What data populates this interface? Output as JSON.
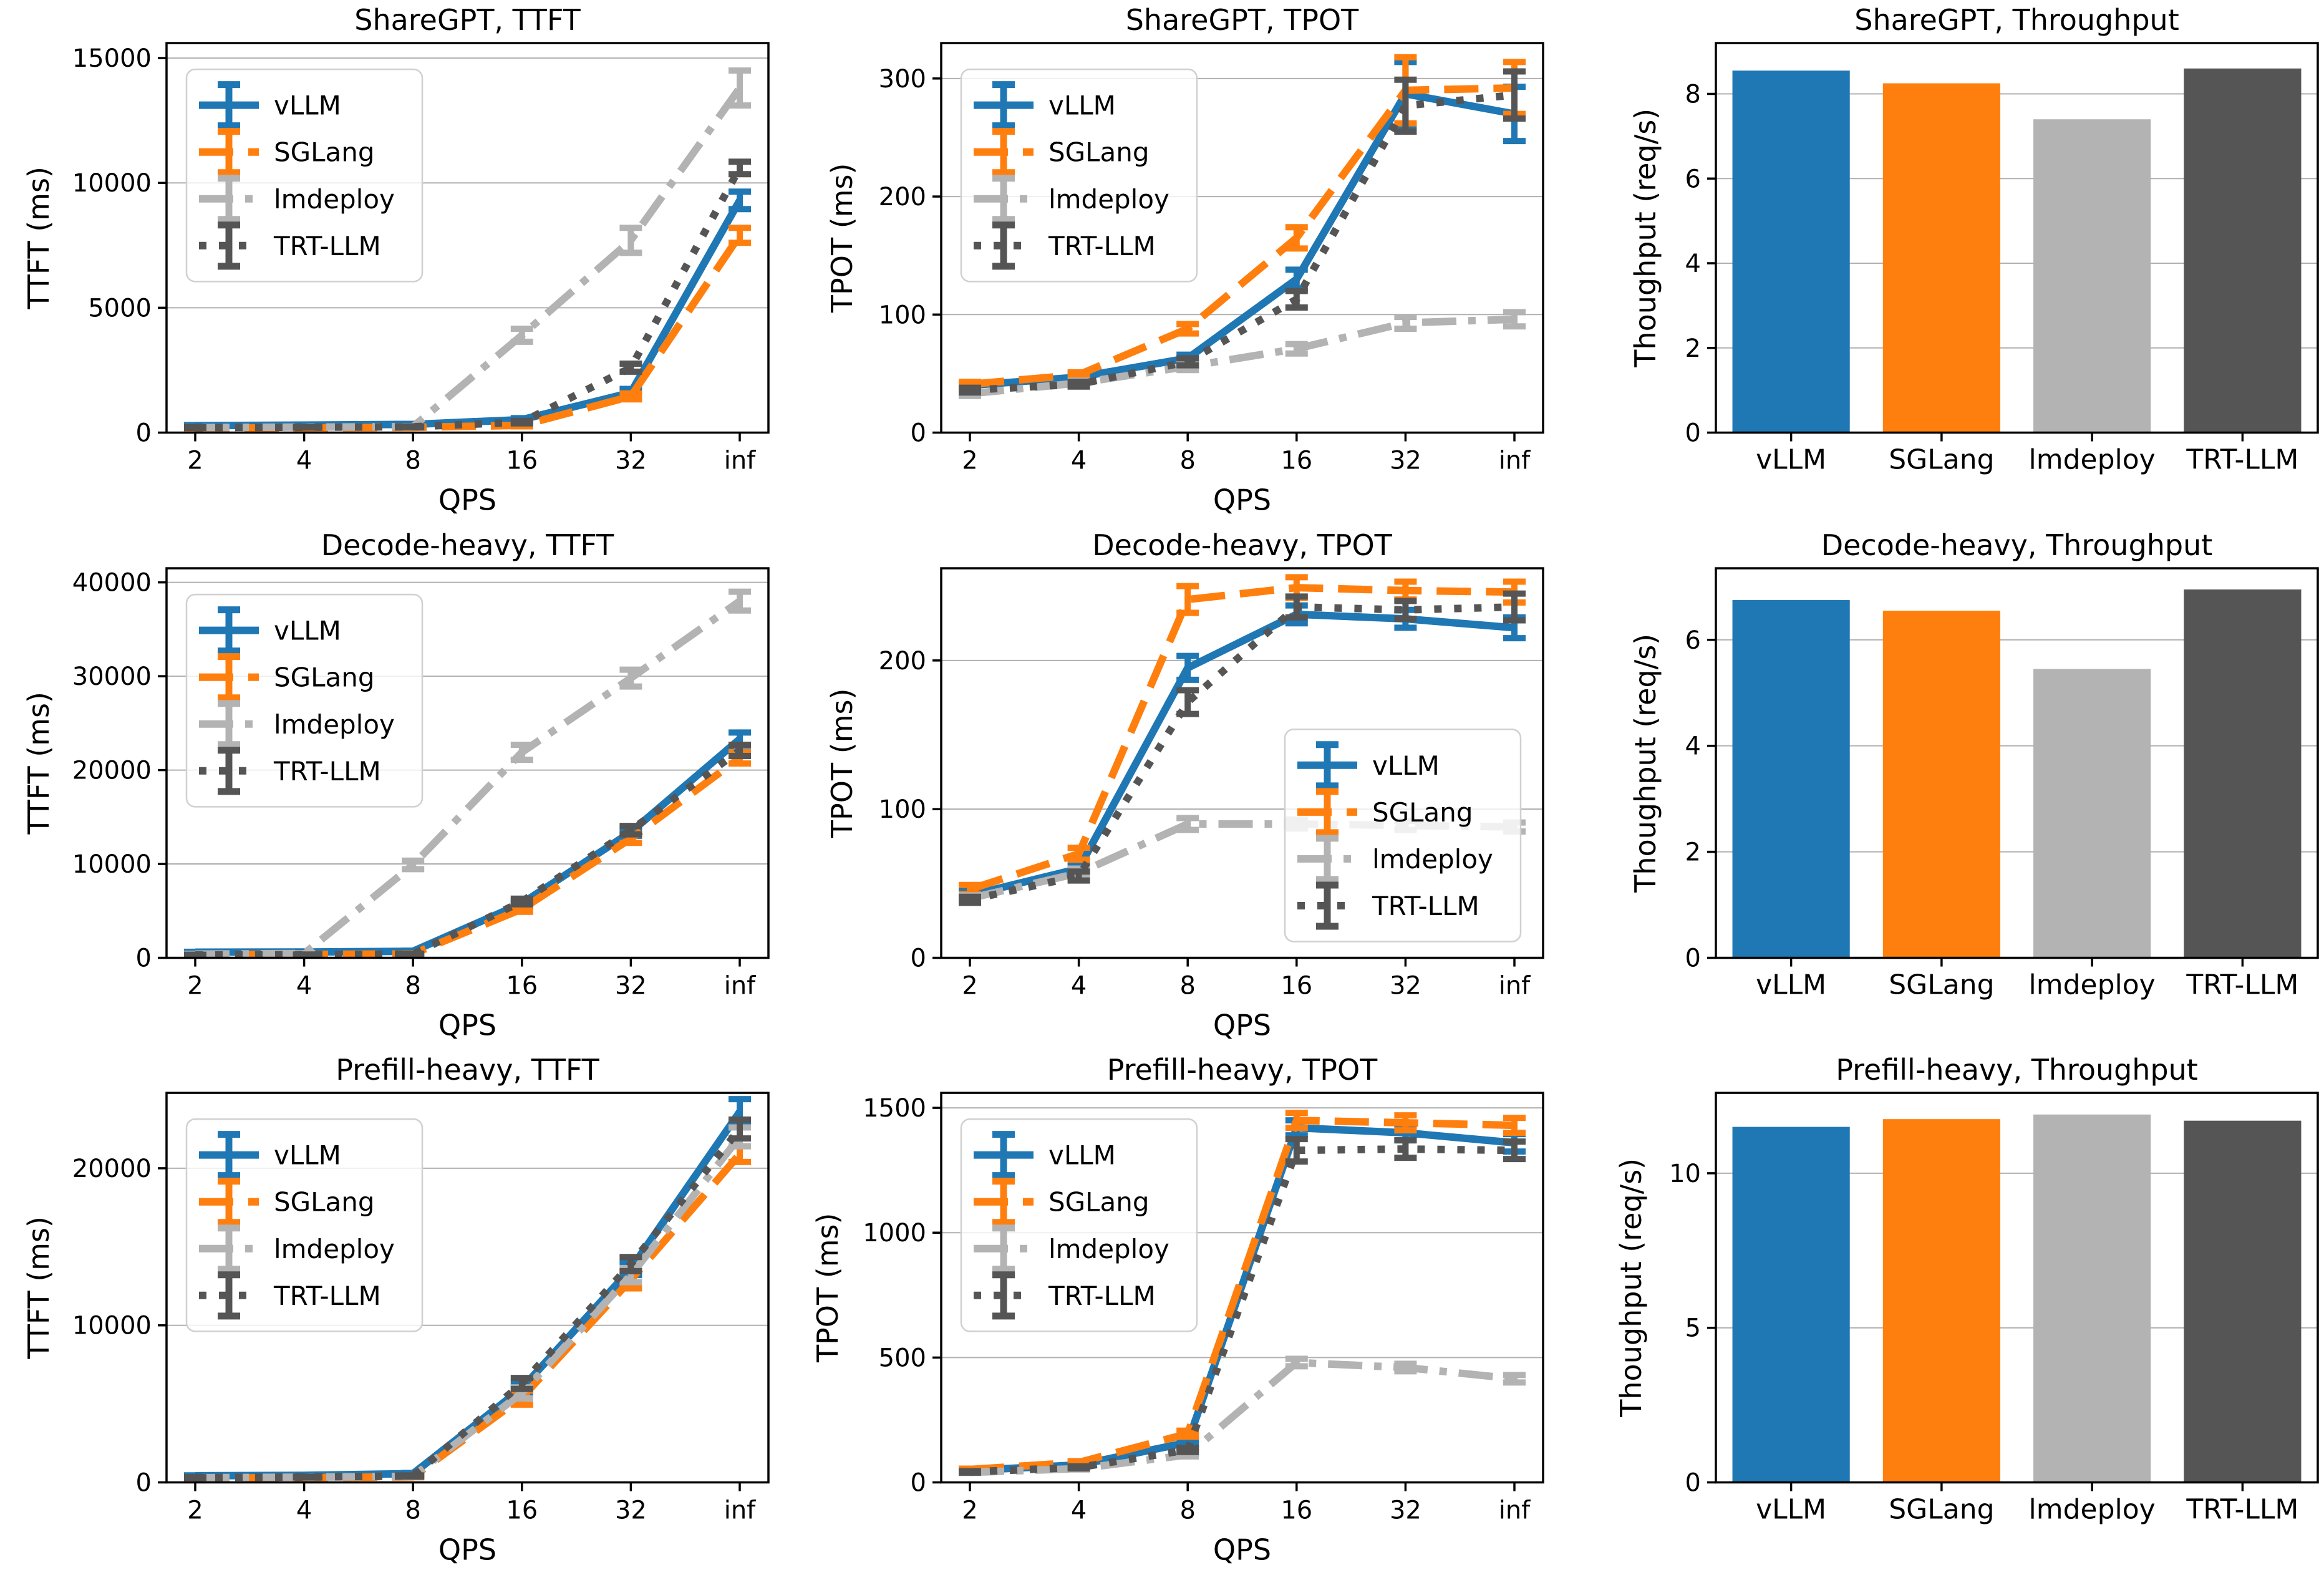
{
  "palette": {
    "vLLM": "#1f77b4",
    "SGLang": "#ff7f0e",
    "lmdeploy": "#b3b3b3",
    "TRT-LLM": "#555555"
  },
  "frameworks": [
    "vLLM",
    "SGLang",
    "lmdeploy",
    "TRT-LLM"
  ],
  "chart_data": [
    {
      "id": "sharegpt-ttft",
      "type": "line",
      "title": "ShareGPT, TTFT",
      "xlabel": "QPS",
      "ylabel": "TTFT (ms)",
      "x_ticklabels": [
        "2",
        "4",
        "8",
        "16",
        "32",
        "inf"
      ],
      "ylim": [
        0,
        15600
      ],
      "yticks": [
        0,
        5000,
        10000,
        15000
      ],
      "grid": "horizontal",
      "legend": {
        "position": "upper-left",
        "entries": [
          "vLLM",
          "SGLang",
          "lmdeploy",
          "TRT-LLM"
        ]
      },
      "series": [
        {
          "name": "vLLM",
          "color": "#1f77b4",
          "linestyle": "solid",
          "values": [
            280,
            300,
            330,
            520,
            1600,
            9300
          ],
          "errors": [
            20,
            20,
            20,
            60,
            150,
            350
          ]
        },
        {
          "name": "SGLang",
          "color": "#ff7f0e",
          "linestyle": "dashed",
          "values": [
            180,
            190,
            210,
            290,
            1450,
            7900
          ],
          "errors": [
            15,
            15,
            15,
            40,
            120,
            300
          ]
        },
        {
          "name": "lmdeploy",
          "color": "#b3b3b3",
          "linestyle": "dashdot",
          "values": [
            200,
            220,
            240,
            3900,
            7700,
            13800
          ],
          "errors": [
            15,
            15,
            20,
            260,
            500,
            700
          ]
        },
        {
          "name": "TRT-LLM",
          "color": "#555555",
          "linestyle": "dotted",
          "values": [
            200,
            215,
            235,
            420,
            2600,
            10600
          ],
          "errors": [
            15,
            15,
            15,
            50,
            160,
            250
          ]
        }
      ]
    },
    {
      "id": "sharegpt-tpot",
      "type": "line",
      "title": "ShareGPT, TPOT",
      "xlabel": "QPS",
      "ylabel": "TPOT (ms)",
      "x_ticklabels": [
        "2",
        "4",
        "8",
        "16",
        "32",
        "inf"
      ],
      "ylim": [
        0,
        330
      ],
      "yticks": [
        0,
        100,
        200,
        300
      ],
      "grid": "horizontal",
      "legend": {
        "position": "upper-left",
        "entries": [
          "vLLM",
          "SGLang",
          "lmdeploy",
          "TRT-LLM"
        ]
      },
      "series": [
        {
          "name": "vLLM",
          "color": "#1f77b4",
          "linestyle": "solid",
          "values": [
            40,
            47,
            63,
            130,
            287,
            270
          ],
          "errors": [
            2,
            2,
            3,
            8,
            27,
            23
          ]
        },
        {
          "name": "SGLang",
          "color": "#ff7f0e",
          "linestyle": "dashed",
          "values": [
            41,
            49,
            88,
            165,
            290,
            292
          ],
          "errors": [
            2,
            2,
            4,
            9,
            28,
            22
          ]
        },
        {
          "name": "lmdeploy",
          "color": "#b3b3b3",
          "linestyle": "dashdot",
          "values": [
            33,
            42,
            56,
            71,
            93,
            96
          ],
          "errors": [
            2,
            2,
            3,
            4,
            5,
            6
          ]
        },
        {
          "name": "TRT-LLM",
          "color": "#555555",
          "linestyle": "dotted",
          "values": [
            36,
            41,
            60,
            113,
            277,
            286
          ],
          "errors": [
            2,
            2,
            3,
            7,
            22,
            20
          ]
        }
      ]
    },
    {
      "id": "sharegpt-throughput",
      "type": "bar",
      "title": "ShareGPT, Throughput",
      "xlabel": "",
      "ylabel": "Thoughput (req/s)",
      "categories": [
        "vLLM",
        "SGLang",
        "lmdeploy",
        "TRT-LLM"
      ],
      "values": [
        8.55,
        8.25,
        7.4,
        8.6
      ],
      "colors": [
        "#1f77b4",
        "#ff7f0e",
        "#b3b3b3",
        "#555555"
      ],
      "ylim": [
        0,
        9.2
      ],
      "yticks": [
        0,
        2,
        4,
        6,
        8
      ],
      "grid": "horizontal"
    },
    {
      "id": "decode-heavy-ttft",
      "type": "line",
      "title": "Decode-heavy, TTFT",
      "xlabel": "QPS",
      "ylabel": "TTFT (ms)",
      "x_ticklabels": [
        "2",
        "4",
        "8",
        "16",
        "32",
        "inf"
      ],
      "ylim": [
        0,
        41500
      ],
      "yticks": [
        0,
        10000,
        20000,
        30000,
        40000
      ],
      "grid": "horizontal",
      "legend": {
        "position": "upper-left",
        "entries": [
          "vLLM",
          "SGLang",
          "lmdeploy",
          "TRT-LLM"
        ]
      },
      "series": [
        {
          "name": "vLLM",
          "color": "#1f77b4",
          "linestyle": "solid",
          "values": [
            600,
            620,
            700,
            5800,
            13400,
            23300
          ],
          "errors": [
            40,
            40,
            50,
            280,
            400,
            700
          ]
        },
        {
          "name": "SGLang",
          "color": "#ff7f0e",
          "linestyle": "dashed",
          "values": [
            350,
            360,
            420,
            5200,
            12700,
            21300
          ],
          "errors": [
            30,
            30,
            40,
            300,
            450,
            600
          ]
        },
        {
          "name": "lmdeploy",
          "color": "#b3b3b3",
          "linestyle": "dashdot",
          "values": [
            400,
            450,
            9900,
            21900,
            29800,
            38000
          ],
          "errors": [
            30,
            40,
            450,
            800,
            900,
            1000
          ]
        },
        {
          "name": "TRT-LLM",
          "color": "#555555",
          "linestyle": "dotted",
          "values": [
            300,
            330,
            400,
            6000,
            13600,
            22100
          ],
          "errors": [
            25,
            25,
            40,
            300,
            450,
            600
          ]
        }
      ]
    },
    {
      "id": "decode-heavy-tpot",
      "type": "line",
      "title": "Decode-heavy, TPOT",
      "xlabel": "QPS",
      "ylabel": "TPOT (ms)",
      "x_ticklabels": [
        "2",
        "4",
        "8",
        "16",
        "32",
        "inf"
      ],
      "ylim": [
        0,
        262
      ],
      "yticks": [
        0,
        100,
        200
      ],
      "grid": "horizontal",
      "legend": {
        "position": "lower-right",
        "entries": [
          "vLLM",
          "SGLang",
          "lmdeploy",
          "TRT-LLM"
        ]
      },
      "series": [
        {
          "name": "vLLM",
          "color": "#1f77b4",
          "linestyle": "solid",
          "values": [
            42,
            60,
            195,
            231,
            228,
            222
          ],
          "errors": [
            3,
            3,
            8,
            6,
            6,
            7
          ]
        },
        {
          "name": "SGLang",
          "color": "#ff7f0e",
          "linestyle": "dashed",
          "values": [
            46,
            70,
            241,
            249,
            247,
            246
          ],
          "errors": [
            3,
            4,
            9,
            7,
            6,
            7
          ]
        },
        {
          "name": "lmdeploy",
          "color": "#b3b3b3",
          "linestyle": "dashdot",
          "values": [
            40,
            57,
            90,
            90,
            89,
            88
          ],
          "errors": [
            2,
            3,
            4,
            3,
            3,
            3
          ]
        },
        {
          "name": "TRT-LLM",
          "color": "#555555",
          "linestyle": "dotted",
          "values": [
            39,
            55,
            172,
            236,
            234,
            236
          ],
          "errors": [
            2,
            3,
            8,
            7,
            6,
            9
          ]
        }
      ]
    },
    {
      "id": "decode-heavy-throughput",
      "type": "bar",
      "title": "Decode-heavy, Throughput",
      "xlabel": "",
      "ylabel": "Thoughput (req/s)",
      "categories": [
        "vLLM",
        "SGLang",
        "lmdeploy",
        "TRT-LLM"
      ],
      "values": [
        6.75,
        6.55,
        5.45,
        6.95
      ],
      "colors": [
        "#1f77b4",
        "#ff7f0e",
        "#b3b3b3",
        "#555555"
      ],
      "ylim": [
        0,
        7.35
      ],
      "yticks": [
        0,
        2,
        4,
        6
      ],
      "grid": "horizontal"
    },
    {
      "id": "prefill-heavy-ttft",
      "type": "line",
      "title": "Prefill-heavy, TTFT",
      "xlabel": "QPS",
      "ylabel": "TTFT (ms)",
      "x_ticklabels": [
        "2",
        "4",
        "8",
        "16",
        "32",
        "inf"
      ],
      "ylim": [
        0,
        24800
      ],
      "yticks": [
        0,
        10000,
        20000
      ],
      "grid": "horizontal",
      "legend": {
        "position": "upper-left",
        "entries": [
          "vLLM",
          "SGLang",
          "lmdeploy",
          "TRT-LLM"
        ]
      },
      "series": [
        {
          "name": "vLLM",
          "color": "#1f77b4",
          "linestyle": "solid",
          "values": [
            420,
            450,
            560,
            6000,
            13600,
            23600
          ],
          "errors": [
            30,
            30,
            40,
            300,
            400,
            800
          ]
        },
        {
          "name": "SGLang",
          "color": "#ff7f0e",
          "linestyle": "dashed",
          "values": [
            280,
            300,
            360,
            5400,
            12900,
            20900
          ],
          "errors": [
            25,
            25,
            30,
            450,
            550,
            500
          ]
        },
        {
          "name": "lmdeploy",
          "color": "#b3b3b3",
          "linestyle": "dashdot",
          "values": [
            300,
            330,
            390,
            5700,
            13200,
            22000
          ],
          "errors": [
            25,
            25,
            30,
            350,
            450,
            600
          ]
        },
        {
          "name": "TRT-LLM",
          "color": "#555555",
          "linestyle": "dotted",
          "values": [
            310,
            340,
            410,
            6300,
            13900,
            22500
          ],
          "errors": [
            25,
            25,
            35,
            350,
            450,
            600
          ]
        }
      ]
    },
    {
      "id": "prefill-heavy-tpot",
      "type": "line",
      "title": "Prefill-heavy, TPOT",
      "xlabel": "QPS",
      "ylabel": "TPOT (ms)",
      "x_ticklabels": [
        "2",
        "4",
        "8",
        "16",
        "32",
        "inf"
      ],
      "ylim": [
        0,
        1560
      ],
      "yticks": [
        0,
        500,
        1000,
        1500
      ],
      "grid": "horizontal",
      "legend": {
        "position": "upper-left",
        "entries": [
          "vLLM",
          "SGLang",
          "lmdeploy",
          "TRT-LLM"
        ]
      },
      "series": [
        {
          "name": "vLLM",
          "color": "#1f77b4",
          "linestyle": "solid",
          "values": [
            48,
            70,
            160,
            1420,
            1400,
            1360
          ],
          "errors": [
            3,
            4,
            10,
            30,
            30,
            35
          ]
        },
        {
          "name": "SGLang",
          "color": "#ff7f0e",
          "linestyle": "dashed",
          "values": [
            52,
            80,
            195,
            1450,
            1440,
            1430
          ],
          "errors": [
            3,
            5,
            12,
            30,
            30,
            30
          ]
        },
        {
          "name": "lmdeploy",
          "color": "#b3b3b3",
          "linestyle": "dashdot",
          "values": [
            40,
            55,
            110,
            480,
            460,
            415
          ],
          "errors": [
            2,
            3,
            6,
            15,
            15,
            15
          ]
        },
        {
          "name": "TRT-LLM",
          "color": "#555555",
          "linestyle": "dotted",
          "values": [
            42,
            60,
            130,
            1330,
            1335,
            1330
          ],
          "errors": [
            3,
            4,
            8,
            45,
            35,
            35
          ]
        }
      ]
    },
    {
      "id": "prefill-heavy-throughput",
      "type": "bar",
      "title": "Prefill-heavy, Throughput",
      "xlabel": "",
      "ylabel": "Thoughput (req/s)",
      "categories": [
        "vLLM",
        "SGLang",
        "lmdeploy",
        "TRT-LLM"
      ],
      "values": [
        11.5,
        11.75,
        11.9,
        11.7
      ],
      "colors": [
        "#1f77b4",
        "#ff7f0e",
        "#b3b3b3",
        "#555555"
      ],
      "ylim": [
        0,
        12.6
      ],
      "yticks": [
        0,
        5,
        10
      ],
      "grid": "horizontal"
    }
  ]
}
